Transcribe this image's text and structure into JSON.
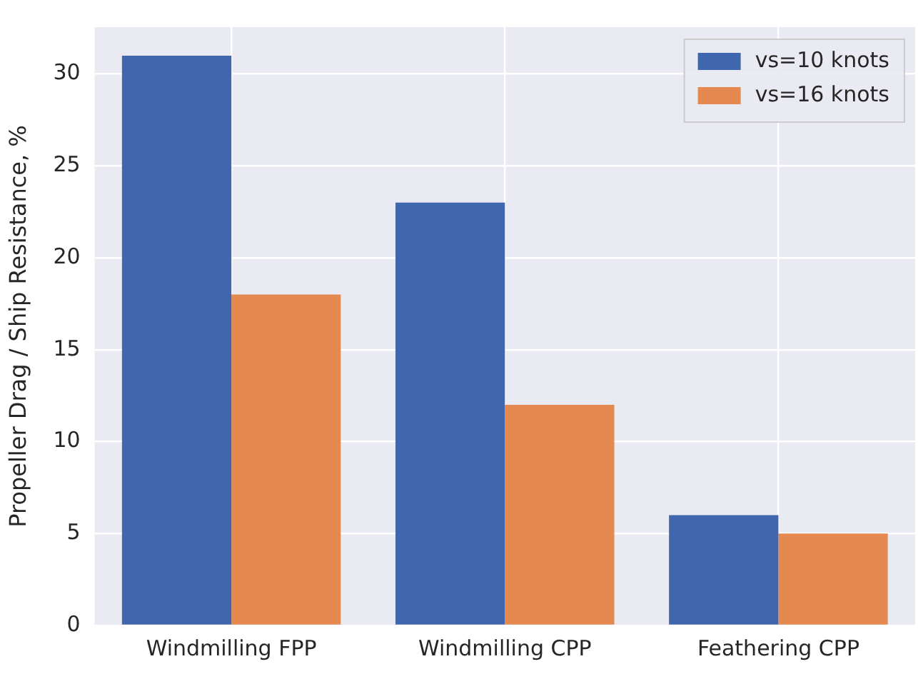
{
  "chart_data": {
    "type": "bar",
    "ylabel": "Propeller Drag / Ship Resistance, %",
    "categories": [
      "Windmilling FPP",
      "Windmilling CPP",
      "Feathering CPP"
    ],
    "series": [
      {
        "name": "vs=10 knots",
        "color": "#4066ad",
        "values": [
          31,
          23,
          6
        ]
      },
      {
        "name": "vs=16 knots",
        "color": "#e4894f",
        "values": [
          18,
          12,
          5
        ]
      }
    ],
    "ylim": [
      0,
      32.55
    ],
    "yticks": [
      0,
      5,
      10,
      15,
      20,
      25,
      30
    ],
    "grid": true,
    "legend": "top right"
  }
}
